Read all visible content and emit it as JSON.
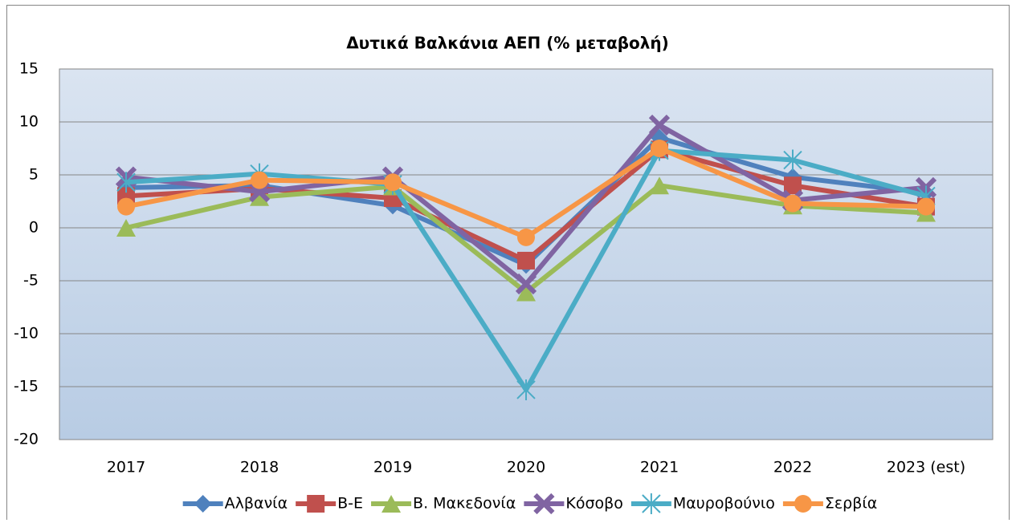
{
  "chart_data": {
    "type": "line",
    "title": "Δυτικά Βαλκάνια ΑΕΠ (% μεταβολή)",
    "categories": [
      "2017",
      "2018",
      "2019",
      "2020",
      "2021",
      "2022",
      "2023 (est)"
    ],
    "series": [
      {
        "name": "Αλβανία",
        "color": "#4f81bd",
        "values": [
          3.8,
          4.0,
          2.1,
          -3.5,
          8.5,
          4.8,
          3.3
        ]
      },
      {
        "name": "Β-Ε",
        "color": "#c0504d",
        "values": [
          3.0,
          3.7,
          2.8,
          -3.1,
          7.4,
          4.0,
          2.0
        ]
      },
      {
        "name": "Β. Μακεδονία",
        "color": "#9bbb59",
        "values": [
          0.0,
          2.9,
          3.9,
          -6.1,
          4.0,
          2.1,
          1.4
        ]
      },
      {
        "name": "Κόσοβο",
        "color": "#8064a2",
        "values": [
          4.8,
          3.4,
          4.8,
          -5.3,
          9.7,
          2.6,
          3.8
        ]
      },
      {
        "name": "Μαυροβούνιο",
        "color": "#4bacc6",
        "values": [
          4.3,
          5.1,
          4.1,
          -15.3,
          7.3,
          6.4,
          3.0
        ]
      },
      {
        "name": "Σερβία",
        "color": "#f79646",
        "values": [
          2.0,
          4.5,
          4.3,
          -0.9,
          7.5,
          2.3,
          2.0
        ]
      }
    ],
    "ylim": [
      -20,
      15
    ],
    "yticks": [
      -20,
      -15,
      -10,
      -5,
      0,
      5,
      10,
      15
    ],
    "grid": true,
    "legend": "bottom"
  }
}
